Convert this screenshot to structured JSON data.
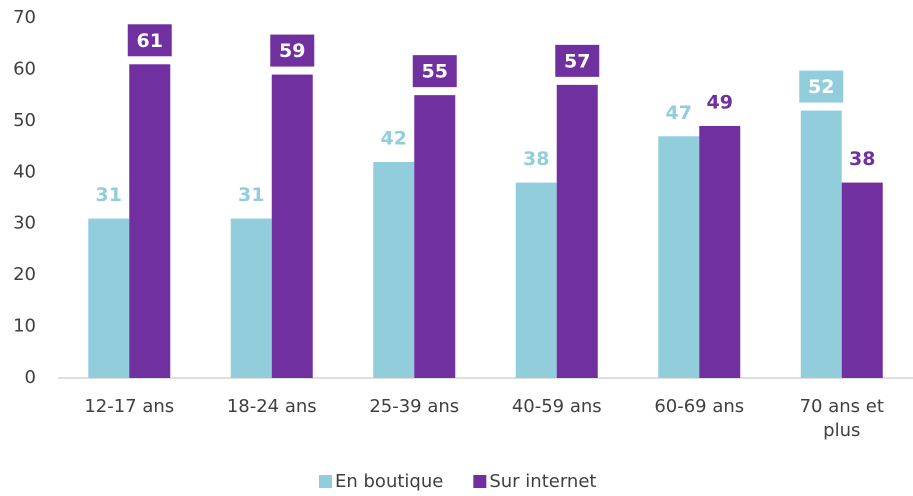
{
  "chart_data": {
    "type": "bar",
    "categories": [
      "12-17 ans",
      "18-24 ans",
      "25-39 ans",
      "40-59 ans",
      "60-69 ans",
      "70 ans et plus"
    ],
    "series": [
      {
        "name": "En boutique",
        "color": "#92cddc",
        "values": [
          31,
          31,
          42,
          38,
          47,
          52
        ],
        "boxed_labels": [
          false,
          false,
          false,
          false,
          false,
          true
        ]
      },
      {
        "name": "Sur internet",
        "color": "#7030a0",
        "values": [
          61,
          59,
          55,
          57,
          49,
          38
        ],
        "boxed_labels": [
          true,
          true,
          true,
          true,
          false,
          false
        ]
      }
    ],
    "ylim": [
      0,
      70
    ],
    "yticks": [
      0,
      10,
      20,
      30,
      40,
      50,
      60,
      70
    ],
    "grid": false,
    "legend": "bottom"
  }
}
